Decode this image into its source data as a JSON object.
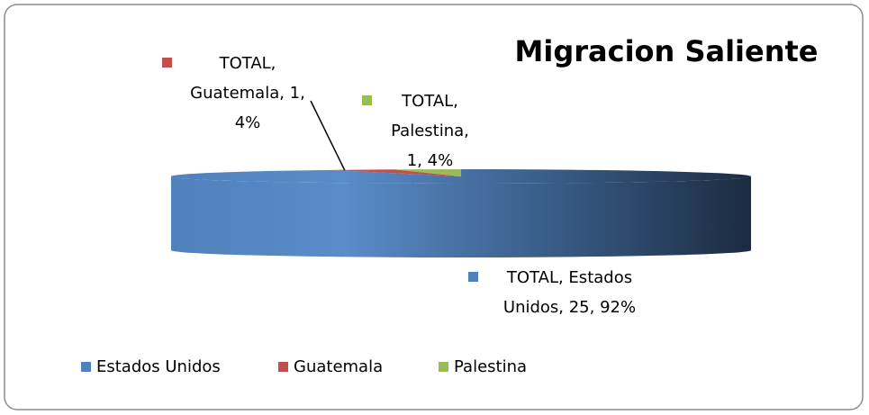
{
  "chart_data": {
    "type": "pie",
    "title": "Migracion Saliente",
    "categories": [
      "Estados Unidos",
      "Guatemala",
      "Palestina"
    ],
    "values": [
      25,
      1,
      1
    ],
    "value_labels": [
      "TOTAL, Estados Unidos, 25, 92%",
      "TOTAL, Guatemala, 1, 4%",
      "TOTAL, Palestina, 1, 4%"
    ],
    "colors": [
      "#4f81bd",
      "#c0504d",
      "#9bbb59"
    ],
    "legend": "bottom"
  }
}
